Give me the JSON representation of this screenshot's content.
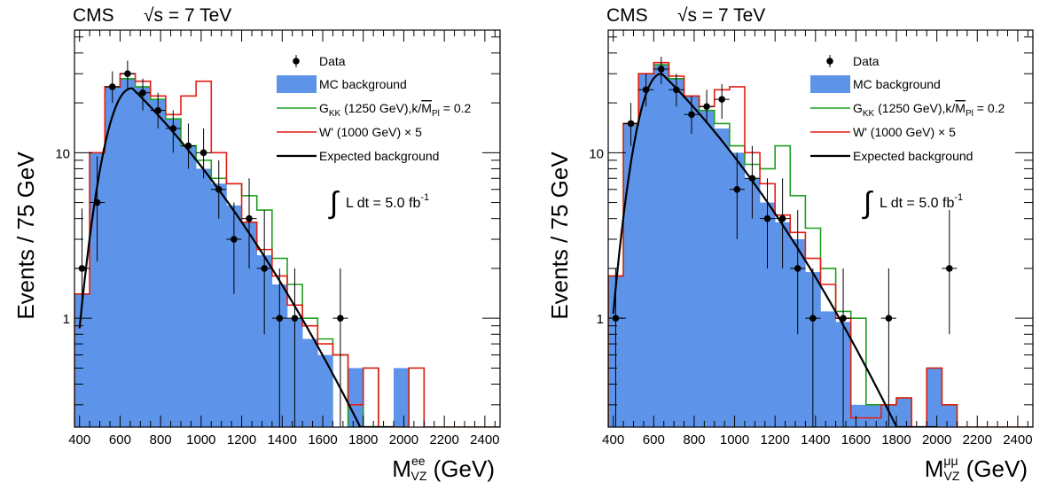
{
  "colors": {
    "mc_fill": "#5d94ea",
    "gkk": "#1f9e1f",
    "wprime": "#e41e16",
    "expected": "#000000",
    "data": "#000000"
  },
  "chart_data": [
    {
      "type": "histogram",
      "id": "ee",
      "header_experiment": "CMS",
      "header_energy": "√s = 7 TeV",
      "ylabel": "Events / 75 GeV",
      "xlabel_main": "M",
      "xlabel_sup": "ee",
      "xlabel_sub": "VZ",
      "xlabel_unit": " (GeV)",
      "y_scale": "log",
      "xlim": [
        375,
        2475
      ],
      "ylim": [
        0.22,
        55
      ],
      "x_ticks": [
        400,
        600,
        800,
        1000,
        1200,
        1400,
        1600,
        1800,
        2000,
        2200,
        2400
      ],
      "x_tick_labels": [
        "400",
        "600",
        "800",
        "1000",
        "1200",
        "1400",
        "1600",
        "1800",
        "2000",
        "2200",
        "2400"
      ],
      "y_ticks": [
        1,
        10
      ],
      "y_tick_labels": [
        "1",
        "10"
      ],
      "bin_edges": [
        375,
        450,
        525,
        600,
        675,
        750,
        825,
        900,
        975,
        1050,
        1125,
        1200,
        1275,
        1350,
        1425,
        1500,
        1575,
        1650,
        1725,
        1800,
        1875,
        1950,
        2025,
        2100,
        2175,
        2250,
        2325,
        2400,
        2475
      ],
      "mc_background": [
        1.4,
        10,
        25,
        28,
        25,
        21,
        16,
        11,
        8,
        6.5,
        4.8,
        3.8,
        2.4,
        1.6,
        1.0,
        0.75,
        0.6,
        0.22,
        0.5,
        0.22,
        0.22,
        0.5,
        0.22,
        0.22,
        0.22,
        0.22,
        0.22,
        0.22
      ],
      "gkk_signal": [
        1.4,
        10,
        25,
        28,
        25,
        21,
        16,
        11,
        9,
        7,
        6.5,
        5.5,
        4.5,
        2.3,
        1.6,
        1.0,
        0.75,
        0.6,
        0.22,
        0.5,
        0.22,
        0.22,
        0.5,
        0.22,
        0.22,
        0.22,
        0.22,
        0.22
      ],
      "wprime_signal": [
        1.4,
        10,
        25,
        30,
        27,
        22,
        17,
        22,
        27,
        10,
        6.5,
        3.8,
        2.6,
        1.8,
        1.2,
        0.9,
        0.7,
        0.6,
        0.3,
        0.5,
        0.22,
        0.22,
        0.5,
        0.22,
        0.22,
        0.22,
        0.22,
        0.22
      ],
      "data_points": [
        {
          "x": 412,
          "y": 2,
          "ylo": 1.3,
          "yhi": 4.6
        },
        {
          "x": 487,
          "y": 5,
          "ylo": 2.2,
          "yhi": 9.5
        },
        {
          "x": 562,
          "y": 25,
          "ylo": 20,
          "yhi": 31
        },
        {
          "x": 637,
          "y": 30,
          "ylo": 24,
          "yhi": 36
        },
        {
          "x": 712,
          "y": 23,
          "ylo": 18,
          "yhi": 28
        },
        {
          "x": 787,
          "y": 18,
          "ylo": 14,
          "yhi": 23
        },
        {
          "x": 862,
          "y": 14,
          "ylo": 10,
          "yhi": 18
        },
        {
          "x": 937,
          "y": 11,
          "ylo": 8,
          "yhi": 15
        },
        {
          "x": 1012,
          "y": 10,
          "ylo": 7,
          "yhi": 14
        },
        {
          "x": 1087,
          "y": 6,
          "ylo": 4,
          "yhi": 9
        },
        {
          "x": 1162,
          "y": 3,
          "ylo": 1.4,
          "yhi": 5
        },
        {
          "x": 1237,
          "y": 4,
          "ylo": 2,
          "yhi": 7
        },
        {
          "x": 1312,
          "y": 2,
          "ylo": 0.8,
          "yhi": 4.5
        },
        {
          "x": 1387,
          "y": 1,
          "ylo": 0.22,
          "yhi": 2
        },
        {
          "x": 1462,
          "y": 1,
          "ylo": 0.22,
          "yhi": 2
        },
        {
          "x": 1687,
          "y": 1,
          "ylo": 0.22,
          "yhi": 2
        }
      ],
      "expected_curve": {
        "peak_x": 660,
        "peak_y": 24.5,
        "start": 400,
        "end": 1950
      },
      "legend": {
        "data": "Data",
        "mc": "MC background",
        "gkk_main": "G",
        "gkk_sub": "KK",
        "gkk_rest": " (1250 GeV),k/",
        "gkk_mbar": "M",
        "gkk_mbar_sub": "Pl",
        "gkk_tail": " = 0.2",
        "wprime": "W' (1000 GeV) × 5",
        "expected": "Expected background"
      },
      "lumi": {
        "integral": "∫",
        "text": "L dt =  5.0 fb",
        "exp": "-1"
      }
    },
    {
      "type": "histogram",
      "id": "mumu",
      "header_experiment": "CMS",
      "header_energy": "√s = 7 TeV",
      "ylabel": "Events / 75 GeV",
      "xlabel_main": "M",
      "xlabel_sup": "μμ",
      "xlabel_sub": "VZ",
      "xlabel_unit": " (GeV)",
      "y_scale": "log",
      "xlim": [
        375,
        2475
      ],
      "ylim": [
        0.22,
        55
      ],
      "x_ticks": [
        400,
        600,
        800,
        1000,
        1200,
        1400,
        1600,
        1800,
        2000,
        2200,
        2400
      ],
      "x_tick_labels": [
        "400",
        "600",
        "800",
        "1000",
        "1200",
        "1400",
        "1600",
        "1800",
        "2000",
        "2200",
        "2400"
      ],
      "y_ticks": [
        1,
        10
      ],
      "y_tick_labels": [
        "1",
        "10"
      ],
      "bin_edges": [
        375,
        450,
        525,
        600,
        675,
        750,
        825,
        900,
        975,
        1050,
        1125,
        1200,
        1275,
        1350,
        1425,
        1500,
        1575,
        1650,
        1725,
        1800,
        1875,
        1950,
        2025,
        2100,
        2175,
        2250,
        2325,
        2400,
        2475
      ],
      "mc_background": [
        1.8,
        15,
        30,
        34,
        28,
        22,
        18,
        14,
        10,
        7,
        5,
        3.8,
        3,
        1.9,
        1.1,
        0.95,
        0.3,
        0.3,
        0.3,
        0.33,
        0.22,
        0.5,
        0.3,
        0.22,
        0.22,
        0.22,
        0.22,
        0.22
      ],
      "gkk_signal": [
        1.8,
        15,
        30,
        34,
        28,
        22,
        18,
        15,
        11,
        8.5,
        8,
        11,
        5.5,
        3.5,
        2,
        1.1,
        1.0,
        0.3,
        0.3,
        0.33,
        0.22,
        0.5,
        0.3,
        0.22,
        0.22,
        0.22,
        0.22,
        0.22
      ],
      "wprime_signal": [
        1.8,
        15,
        30,
        35,
        29,
        22,
        19,
        24,
        25,
        10,
        6.5,
        4.2,
        3.3,
        2.3,
        1.6,
        1.0,
        0.25,
        0.25,
        0.3,
        0.33,
        0.22,
        0.5,
        0.3,
        0.22,
        0.22,
        0.22,
        0.22,
        0.22
      ],
      "data_points": [
        {
          "x": 412,
          "y": 1,
          "ylo": 0.22,
          "yhi": 2
        },
        {
          "x": 487,
          "y": 15,
          "ylo": 11,
          "yhi": 20
        },
        {
          "x": 562,
          "y": 24,
          "ylo": 19,
          "yhi": 30
        },
        {
          "x": 637,
          "y": 32,
          "ylo": 26,
          "yhi": 38
        },
        {
          "x": 712,
          "y": 24,
          "ylo": 19,
          "yhi": 30
        },
        {
          "x": 787,
          "y": 17,
          "ylo": 13,
          "yhi": 22
        },
        {
          "x": 862,
          "y": 19,
          "ylo": 15,
          "yhi": 24
        },
        {
          "x": 937,
          "y": 21,
          "ylo": 16,
          "yhi": 26
        },
        {
          "x": 1012,
          "y": 6,
          "ylo": 3,
          "yhi": 10
        },
        {
          "x": 1087,
          "y": 7,
          "ylo": 4,
          "yhi": 11
        },
        {
          "x": 1162,
          "y": 4,
          "ylo": 2,
          "yhi": 7
        },
        {
          "x": 1237,
          "y": 4,
          "ylo": 2,
          "yhi": 7
        },
        {
          "x": 1312,
          "y": 2,
          "ylo": 0.8,
          "yhi": 4.5
        },
        {
          "x": 1387,
          "y": 1,
          "ylo": 0.22,
          "yhi": 2
        },
        {
          "x": 1537,
          "y": 1,
          "ylo": 0.22,
          "yhi": 2
        },
        {
          "x": 1762,
          "y": 1,
          "ylo": 0.22,
          "yhi": 2
        },
        {
          "x": 2062,
          "y": 2,
          "ylo": 0.8,
          "yhi": 4.5
        }
      ],
      "expected_curve": {
        "peak_x": 640,
        "peak_y": 30,
        "start": 400,
        "end": 2000
      },
      "legend": {
        "data": "Data",
        "mc": "MC background",
        "gkk_main": "G",
        "gkk_sub": "KK",
        "gkk_rest": " (1250 GeV),k/",
        "gkk_mbar": "M",
        "gkk_mbar_sub": "Pl",
        "gkk_tail": " = 0.2",
        "wprime": "W' (1000 GeV) × 5",
        "expected": "Expected background"
      },
      "lumi": {
        "integral": "∫",
        "text": "L dt =  5.0 fb",
        "exp": "-1"
      }
    }
  ]
}
